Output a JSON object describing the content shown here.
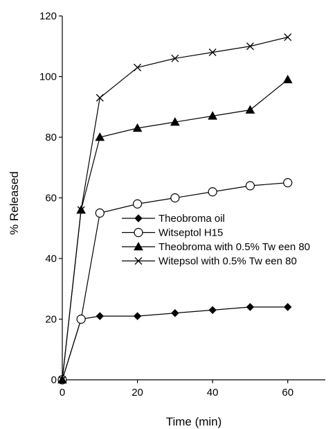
{
  "chart_data": {
    "type": "line",
    "title": "",
    "xlabel": "Time (min)",
    "ylabel": "% Released",
    "xlim": [
      0,
      70
    ],
    "ylim": [
      0,
      120
    ],
    "xticks": [
      0,
      20,
      40,
      60
    ],
    "yticks": [
      0,
      20,
      40,
      60,
      80,
      100,
      120
    ],
    "grid": false,
    "legend_placement": "center-right",
    "series": [
      {
        "name": "Theobroma oil",
        "marker": "filled-diamond",
        "x": [
          0,
          5,
          10,
          20,
          30,
          40,
          50,
          60
        ],
        "values": [
          0,
          20,
          21,
          21,
          22,
          23,
          24,
          24
        ]
      },
      {
        "name": "Witseptol H15",
        "marker": "open-circle",
        "x": [
          0,
          5,
          10,
          20,
          30,
          40,
          50,
          60
        ],
        "values": [
          0,
          20,
          55,
          58,
          60,
          62,
          64,
          65
        ]
      },
      {
        "name": "Theobroma with 0.5% Tw een 80",
        "marker": "filled-triangle",
        "x": [
          0,
          5,
          10,
          20,
          30,
          40,
          50,
          60
        ],
        "values": [
          0,
          56,
          80,
          83,
          85,
          87,
          89,
          99
        ]
      },
      {
        "name": "Witepsol with 0.5% Tw een 80",
        "marker": "x-cross",
        "x": [
          0,
          5,
          10,
          20,
          30,
          40,
          50,
          60
        ],
        "values": [
          0,
          56,
          93,
          103,
          106,
          108,
          110,
          113
        ]
      }
    ]
  }
}
